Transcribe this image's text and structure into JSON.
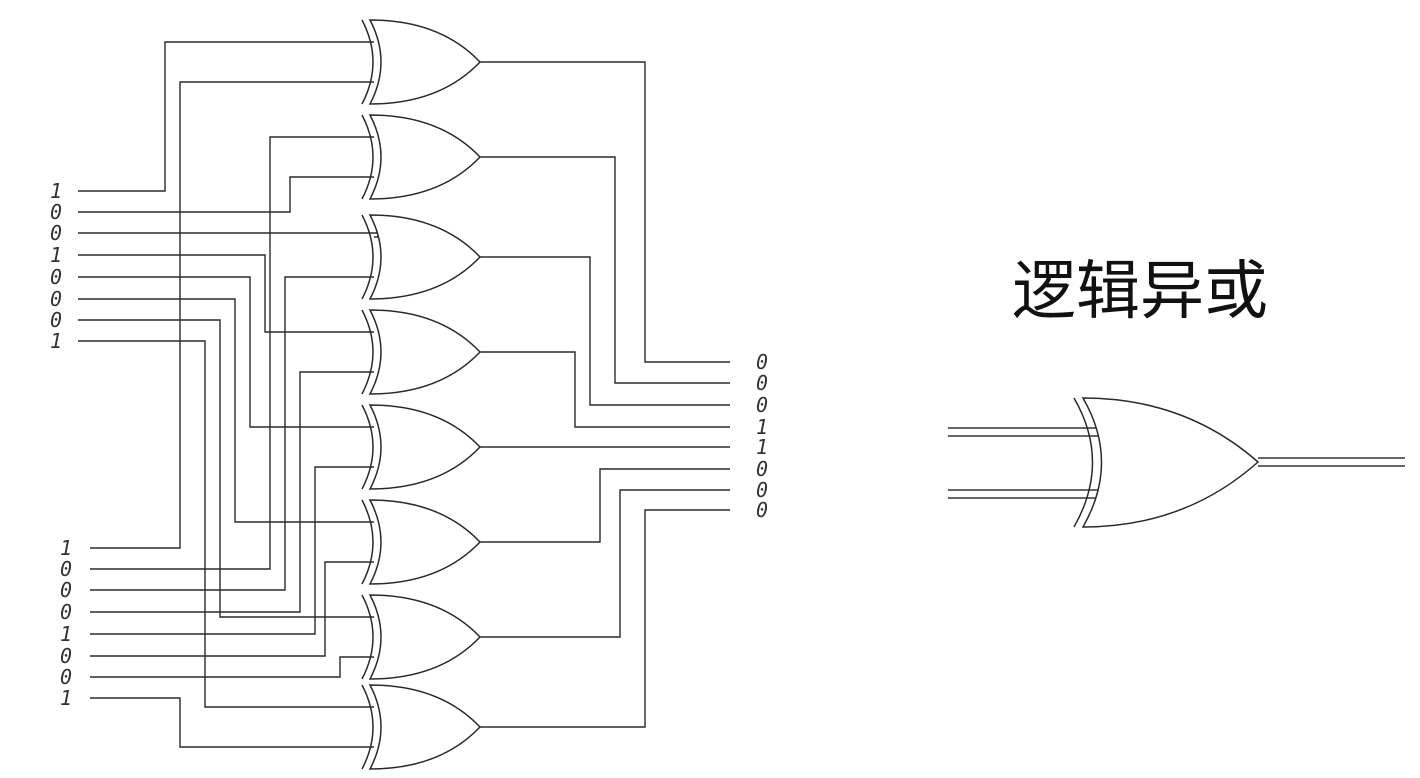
{
  "diagram": {
    "type": "xor-logic-circuit",
    "title": "逻辑异或",
    "gate_type": "XOR",
    "gate_count": 8,
    "input_a_bits": [
      "1",
      "0",
      "0",
      "1",
      "0",
      "0",
      "0",
      "1"
    ],
    "input_b_bits": [
      "1",
      "0",
      "0",
      "0",
      "1",
      "0",
      "0",
      "1"
    ],
    "output_bits": [
      "0",
      "0",
      "0",
      "1",
      "1",
      "0",
      "0",
      "0"
    ],
    "colors": {
      "line": "#2a2a2a",
      "background": "#ffffff",
      "text": "#111111"
    }
  }
}
